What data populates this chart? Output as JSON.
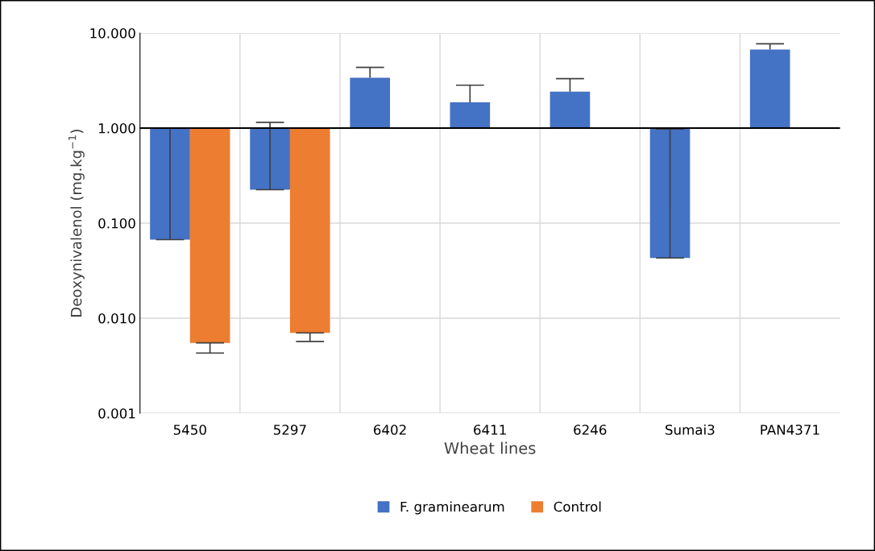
{
  "chart_data": {
    "type": "bar",
    "xlabel": "Wheat lines",
    "ylabel": "Deoxynivalenol (mg.kg$^{−1}$)",
    "categories": [
      "5450",
      "5297",
      "6402",
      "6411",
      "6246",
      "Sumai3",
      "PAN4371"
    ],
    "series": [
      {
        "name": "F. graminearum",
        "color": "#4472c4",
        "base": [
          1,
          1,
          1,
          1,
          1,
          1,
          1
        ],
        "values": [
          -0.933,
          -0.775,
          2.38,
          0.87,
          1.42,
          -0.957,
          5.7
        ],
        "errors": [
          [
            0.067,
            1.0
          ],
          [
            0.225,
            1.15
          ],
          [
            3.38,
            4.36
          ],
          [
            1.87,
            2.83
          ],
          [
            2.42,
            3.31
          ],
          [
            0.043,
            0.98
          ],
          [
            6.7,
            7.7
          ]
        ]
      },
      {
        "name": "Control",
        "color": "#ed7d31",
        "base": [
          1,
          1,
          null,
          null,
          null,
          null,
          null
        ],
        "values": [
          -0.9945,
          -0.993,
          null,
          null,
          null,
          null,
          null
        ],
        "errors": [
          [
            0.0043,
            0.0055
          ],
          [
            0.0057,
            0.007
          ],
          null,
          null,
          null,
          null,
          null
        ]
      }
    ],
    "log": "y",
    "ylim": [
      0.001,
      10
    ],
    "yticks": [
      {
        "value": 0.001,
        "label": "0.001"
      },
      {
        "value": 0.01,
        "label": "0.010"
      },
      {
        "value": 0.1,
        "label": "0.100"
      },
      {
        "value": 1,
        "label": "1.000"
      },
      {
        "value": 10,
        "label": "10.000"
      }
    ],
    "ref_lines": [
      {
        "axis": "y",
        "value": 1,
        "color": "#000000"
      }
    ],
    "grid": true,
    "legend": "bottom"
  }
}
